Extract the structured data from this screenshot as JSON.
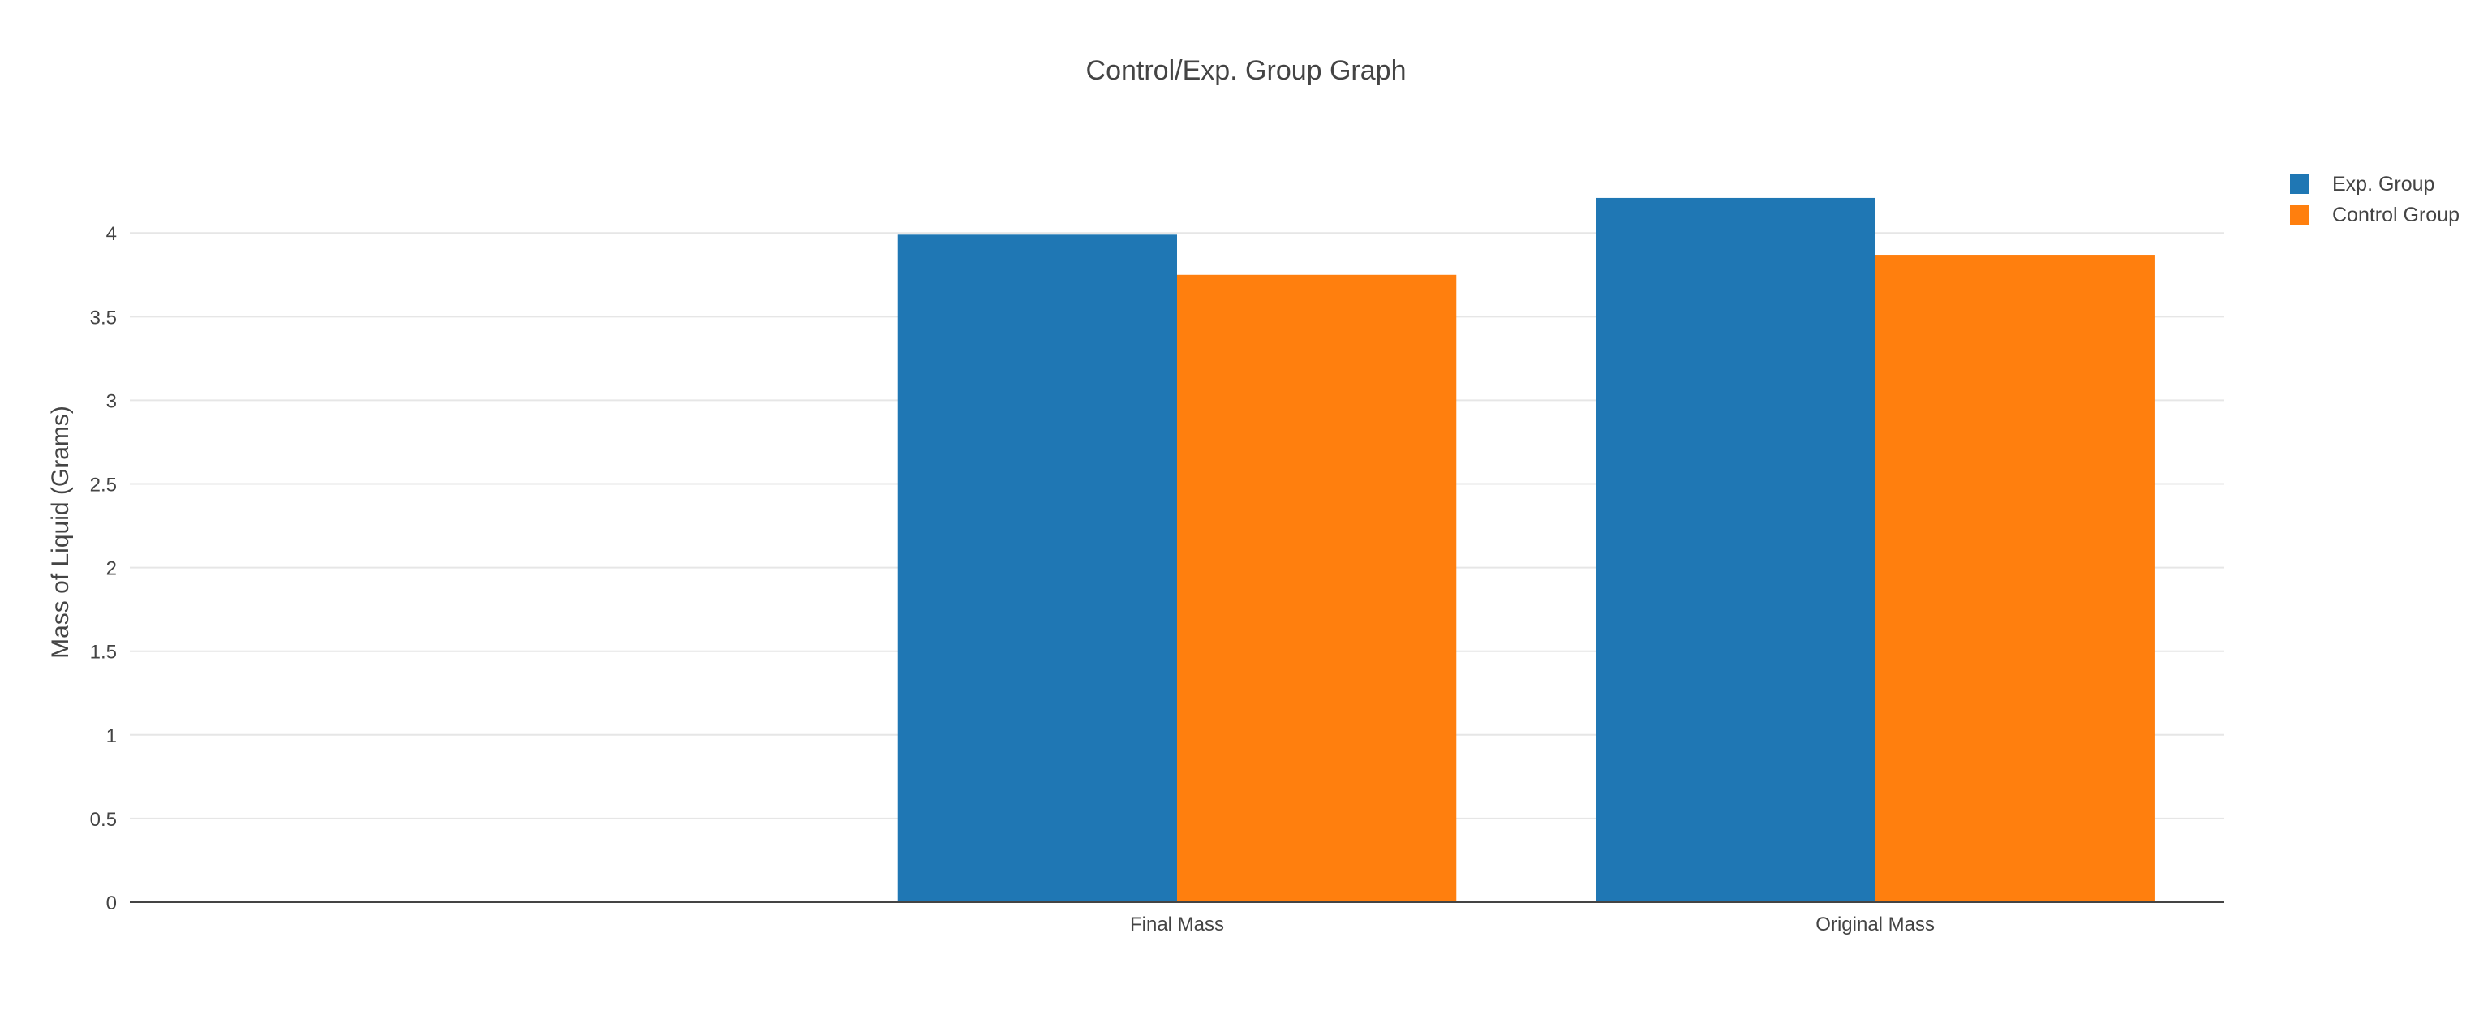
{
  "chart_data": {
    "type": "bar",
    "title": "Control/Exp. Group Graph",
    "xlabel": "",
    "ylabel": "Mass of Liquid (Grams)",
    "categories": [
      "",
      "Final Mass",
      "Original Mass"
    ],
    "series": [
      {
        "name": "Exp. Group",
        "color": "#1f77b4",
        "values": [
          null,
          3.99,
          4.21
        ]
      },
      {
        "name": "Control Group",
        "color": "#ff7f0e",
        "values": [
          null,
          3.75,
          3.87
        ]
      }
    ],
    "ylim": [
      0,
      4.2
    ],
    "yticks": [
      "0",
      "0.5",
      "1",
      "1.5",
      "2",
      "2.5",
      "3",
      "3.5",
      "4"
    ],
    "ytick_values": [
      0,
      0.5,
      1,
      1.5,
      2,
      2.5,
      3,
      3.5,
      4
    ],
    "grid": true,
    "legend_position": "top-right"
  }
}
